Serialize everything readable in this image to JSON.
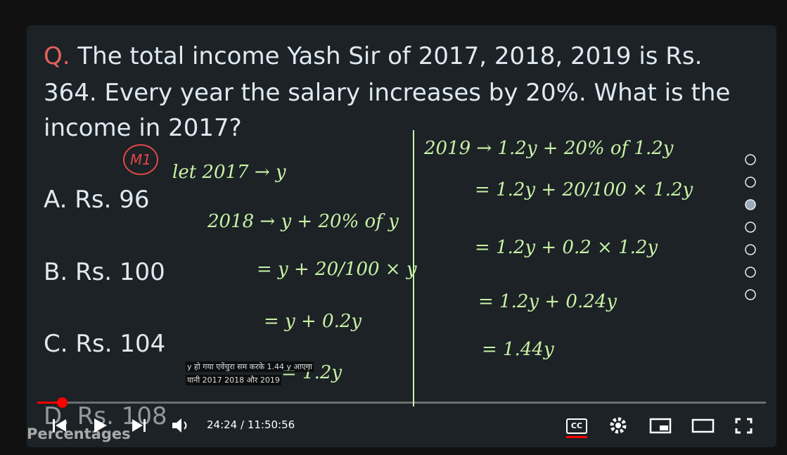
{
  "question": {
    "prefix": "Q.",
    "lines": [
      "The total income Yash Sir of 2017, 2018, 2019 is Rs.",
      "364. Every year the salary increases by 20%. What is the",
      "income in 2017?"
    ]
  },
  "options": [
    "A. Rs. 96",
    "B. Rs. 100",
    "C. Rs. 104",
    "D. Rs. 108"
  ],
  "method_tag": "M1",
  "working_left": [
    "let  2017 → y",
    "2018 →  y + 20% of y",
    "=  y + 20/100 × y",
    "= y + 0.2y",
    "= 1.2y"
  ],
  "working_right": [
    "2019 →  1.2y + 20% of 1.2y",
    "= 1.2y +  20/100 × 1.2y",
    "= 1.2y +  0.2 × 1.2y",
    "= 1.2y + 0.24y",
    "= 1.44y"
  ],
  "caption": [
    "y हो गया एवेंचुरा सम करके 1.44 y आएगा",
    "यानी 2017 2018 और 2019"
  ],
  "player": {
    "overlay_title": "Percentages",
    "time": "24:24 / 11:50:56",
    "cc": "CC"
  }
}
